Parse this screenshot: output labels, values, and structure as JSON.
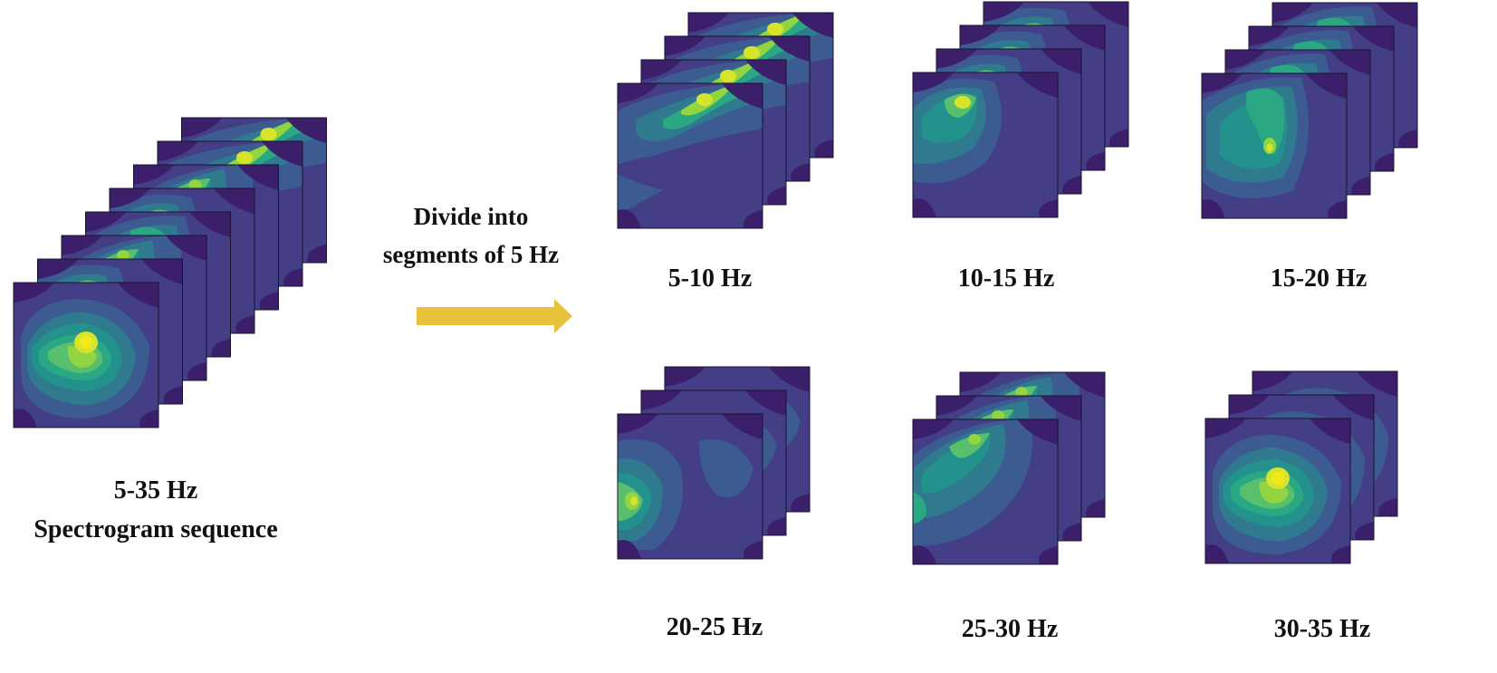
{
  "source": {
    "range_label": "5-35 Hz",
    "caption": "Spectrogram sequence"
  },
  "step": {
    "line1": "Divide into",
    "line2": "segments of 5 Hz"
  },
  "segments": [
    {
      "label": "5-10 Hz"
    },
    {
      "label": "10-15 Hz"
    },
    {
      "label": "15-20 Hz"
    },
    {
      "label": "20-25 Hz"
    },
    {
      "label": "25-30 Hz"
    },
    {
      "label": "30-35 Hz"
    }
  ],
  "colors": {
    "arrow": "#E8C23A",
    "colormap": [
      "#3b1f6b",
      "#433e85",
      "#3b5b91",
      "#2f7a8e",
      "#24928c",
      "#2aa883",
      "#58bf6c",
      "#93d442",
      "#d6e52c",
      "#f1ea1a"
    ]
  }
}
